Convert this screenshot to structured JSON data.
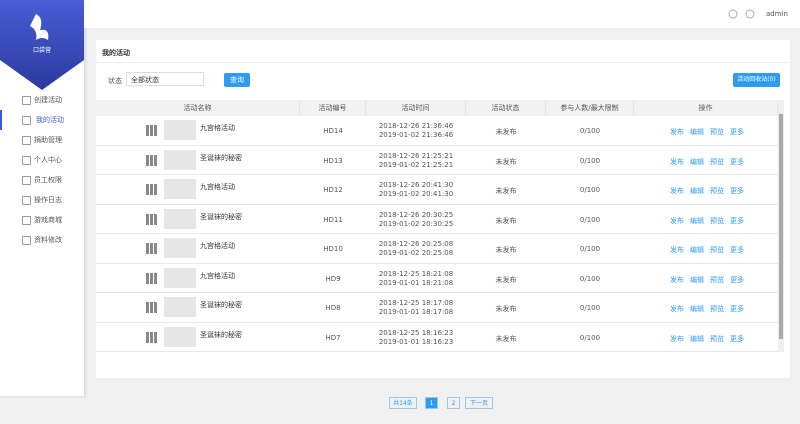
{
  "sidebar": {
    "logo_text": "口袋营",
    "menu": [
      "创建活动",
      "我的活动",
      "捐助管理",
      "个人中心",
      "员工权限",
      "操作日志",
      "游戏商城",
      "资料修改"
    ]
  },
  "header": {
    "user": "admin"
  },
  "page": {
    "title": "我的活动",
    "filter_label": "状态",
    "filter_value": "全部状态",
    "search_button": "查询",
    "recycle_button": "活动回收站(0)"
  },
  "table": {
    "columns": [
      "活动名称",
      "活动编号",
      "活动时间",
      "活动状态",
      "参与人数/最大限制",
      "操作"
    ],
    "actions": [
      "发布",
      "编辑",
      "预览",
      "更多"
    ],
    "rows": [
      {
        "name": "九宫格活动",
        "id": "HD14",
        "start": "2018-12-26 21:36:46",
        "end": "2019-01-02 21:36:46",
        "status": "未发布",
        "participants": "0/100"
      },
      {
        "name": "圣诞袜的秘密",
        "id": "HD13",
        "start": "2018-12-26 21:25:21",
        "end": "2019-01-02 21:25:21",
        "status": "未发布",
        "participants": "0/100"
      },
      {
        "name": "九宫格活动",
        "id": "HD12",
        "start": "2018-12-26 20:41:30",
        "end": "2019-01-02 20:41:30",
        "status": "未发布",
        "participants": "0/100"
      },
      {
        "name": "圣诞袜的秘密",
        "id": "HD11",
        "start": "2018-12-26 20:30:25",
        "end": "2019-01-02 20:30:25",
        "status": "未发布",
        "participants": "0/100"
      },
      {
        "name": "九宫格活动",
        "id": "HD10",
        "start": "2018-12-26 20:25:08",
        "end": "2019-01-02 20:25:08",
        "status": "未发布",
        "participants": "0/100"
      },
      {
        "name": "九宫格活动",
        "id": "HD9",
        "start": "2018-12-25 18:21:08",
        "end": "2019-01-01 18:21:08",
        "status": "未发布",
        "participants": "0/100"
      },
      {
        "name": "圣诞袜的秘密",
        "id": "HD8",
        "start": "2018-12-25 18:17:08",
        "end": "2019-01-01 18:17:08",
        "status": "未发布",
        "participants": "0/100"
      },
      {
        "name": "圣诞袜的秘密",
        "id": "HD7",
        "start": "2018-12-25 18:16:23",
        "end": "2019-01-01 18:16:23",
        "status": "未发布",
        "participants": "0/100"
      }
    ]
  },
  "pagination": {
    "total": "共14条",
    "pages": [
      "1",
      "2"
    ],
    "next": "下一页"
  }
}
